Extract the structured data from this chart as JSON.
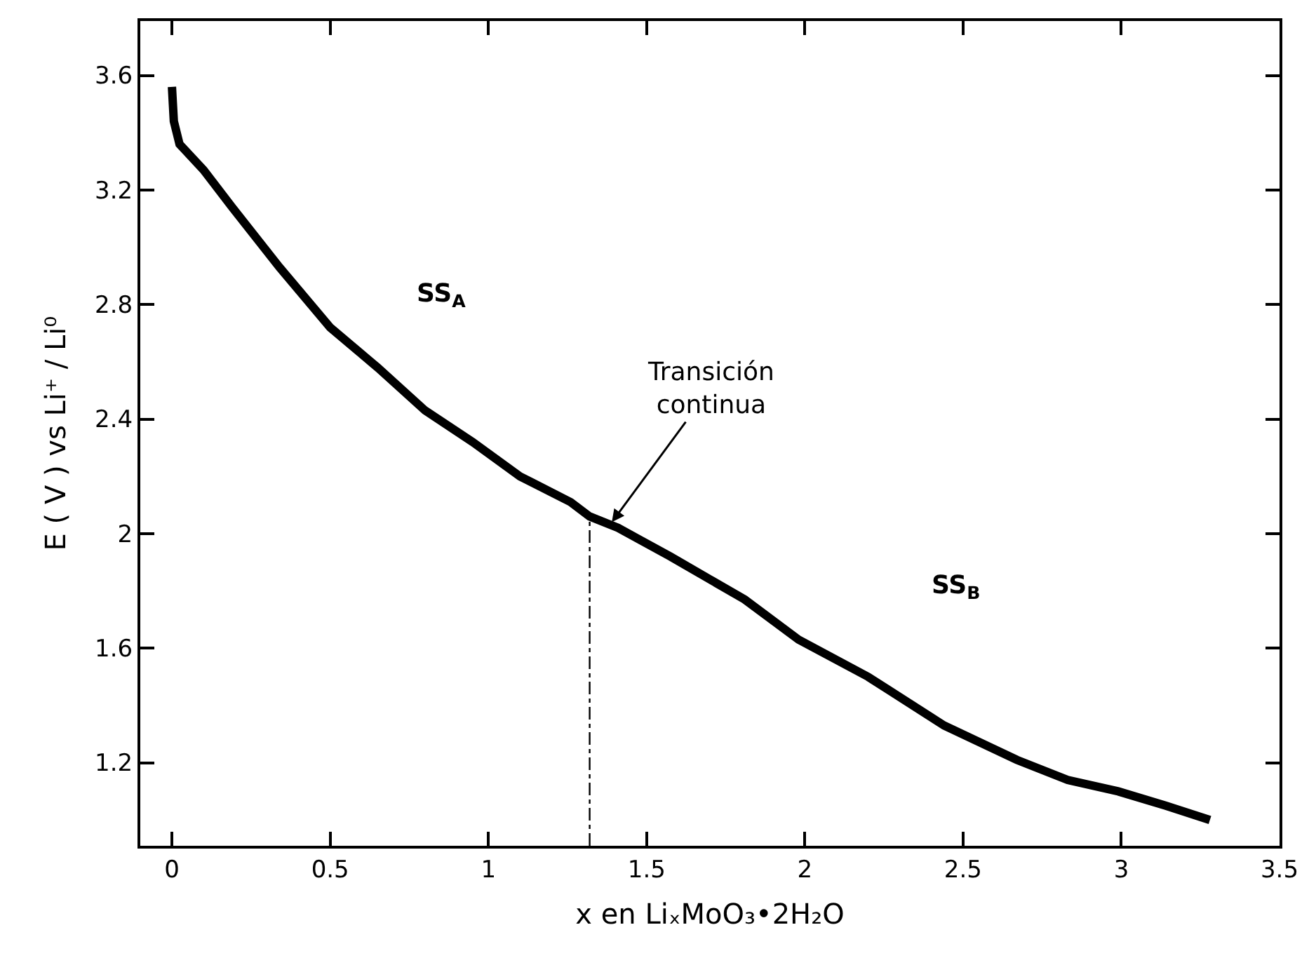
{
  "chart_data": {
    "type": "line",
    "xlabel": "x en LiₓMoO₃•2H₂O",
    "ylabel": "E ( V ) vs Li⁺ / Li⁰",
    "xlim": [
      -0.1,
      3.5
    ],
    "xticks": [
      0,
      0.5,
      1,
      1.5,
      2,
      2.5,
      3,
      3.5
    ],
    "ylim": [
      0.91,
      3.79
    ],
    "yticks": [
      1.2,
      1.6,
      2,
      2.4,
      2.8,
      3.2,
      3.6
    ],
    "marker": "none",
    "line_style": "solid",
    "series": [
      {
        "color": "#000000",
        "x": [
          0,
          0.006,
          0.024,
          0.1,
          0.19,
          0.34,
          0.5,
          0.65,
          0.8,
          0.95,
          1.1,
          1.26,
          1.32,
          1.41,
          1.575,
          1.81,
          1.98,
          2.2,
          2.44,
          2.67,
          2.83,
          2.99,
          3.14,
          3.28
        ],
        "values": [
          3.56,
          3.44,
          3.36,
          3.27,
          3.14,
          2.93,
          2.72,
          2.58,
          2.43,
          2.32,
          2.2,
          2.11,
          2.06,
          2.02,
          1.92,
          1.77,
          1.63,
          1.5,
          1.33,
          1.21,
          1.14,
          1.1,
          1.05,
          1.0
        ]
      },
      {
        "color": "#000000",
        "line_style": "dashed",
        "x": [
          1.32,
          1.32
        ],
        "values": [
          0.91,
          2.06
        ]
      }
    ],
    "annotations": [
      "SS$_{A}$",
      "SS$_{B}$",
      {
        "text": "Transición\ncontinua",
        "x": 1.39,
        "y": 2.04
      }
    ]
  }
}
